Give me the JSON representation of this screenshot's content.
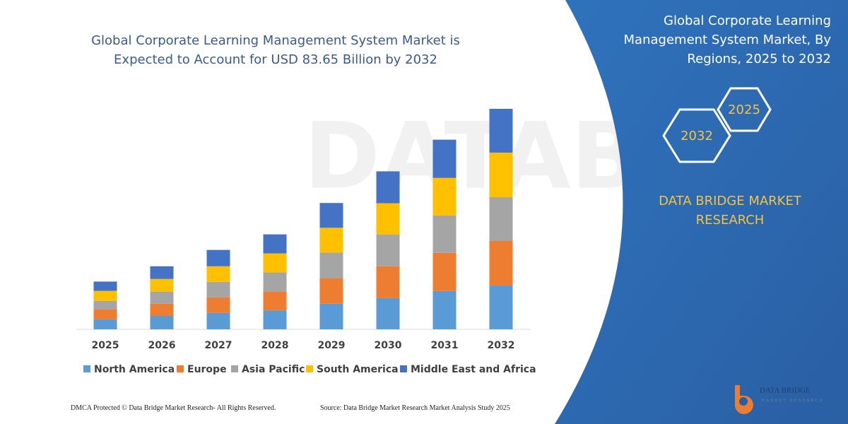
{
  "chart_data": {
    "type": "stacked-bar",
    "title": "Global Corporate Learning Management System Market is Expected to Account for USD 83.65 Billion by 2032",
    "categories": [
      "2025",
      "2026",
      "2027",
      "2028",
      "2029",
      "2030",
      "2031",
      "2032"
    ],
    "series": [
      {
        "name": "North America",
        "color": "#5b9bd5",
        "values": [
          3.8,
          5.1,
          6.2,
          7.2,
          9.7,
          11.8,
          14.5,
          16.6
        ]
      },
      {
        "name": "Europe",
        "color": "#ed7d31",
        "values": [
          3.8,
          4.6,
          5.9,
          7.2,
          9.7,
          12.1,
          14.5,
          16.9
        ]
      },
      {
        "name": "Asia Pacific",
        "color": "#a5a5a5",
        "values": [
          3.2,
          4.6,
          5.9,
          7.2,
          9.7,
          12.1,
          14.2,
          16.6
        ]
      },
      {
        "name": "South America",
        "color": "#ffc000",
        "values": [
          3.8,
          4.8,
          5.9,
          7.2,
          9.4,
          11.8,
          14.2,
          16.9
        ]
      },
      {
        "name": "Middle East and Africa",
        "color": "#4472c4",
        "values": [
          3.5,
          4.8,
          6.2,
          7.2,
          9.4,
          12.1,
          14.5,
          16.6
        ]
      }
    ]
  },
  "panel": {
    "title": "Global Corporate Learning Management System Market, By Regions, 2025 to 2032",
    "hexagons": [
      "2025",
      "2032"
    ],
    "brand": "DATA BRIDGE MARKET RESEARCH"
  },
  "footer": {
    "left": "DMCA Protected © Data Bridge Market Research-  All Rights Reserved.",
    "right": "Source: Data Bridge Market Research  Market Analysis Study 2025"
  },
  "logo": {
    "name": "DATA BRIDGE",
    "tagline": "MARKET RESEARCH"
  }
}
